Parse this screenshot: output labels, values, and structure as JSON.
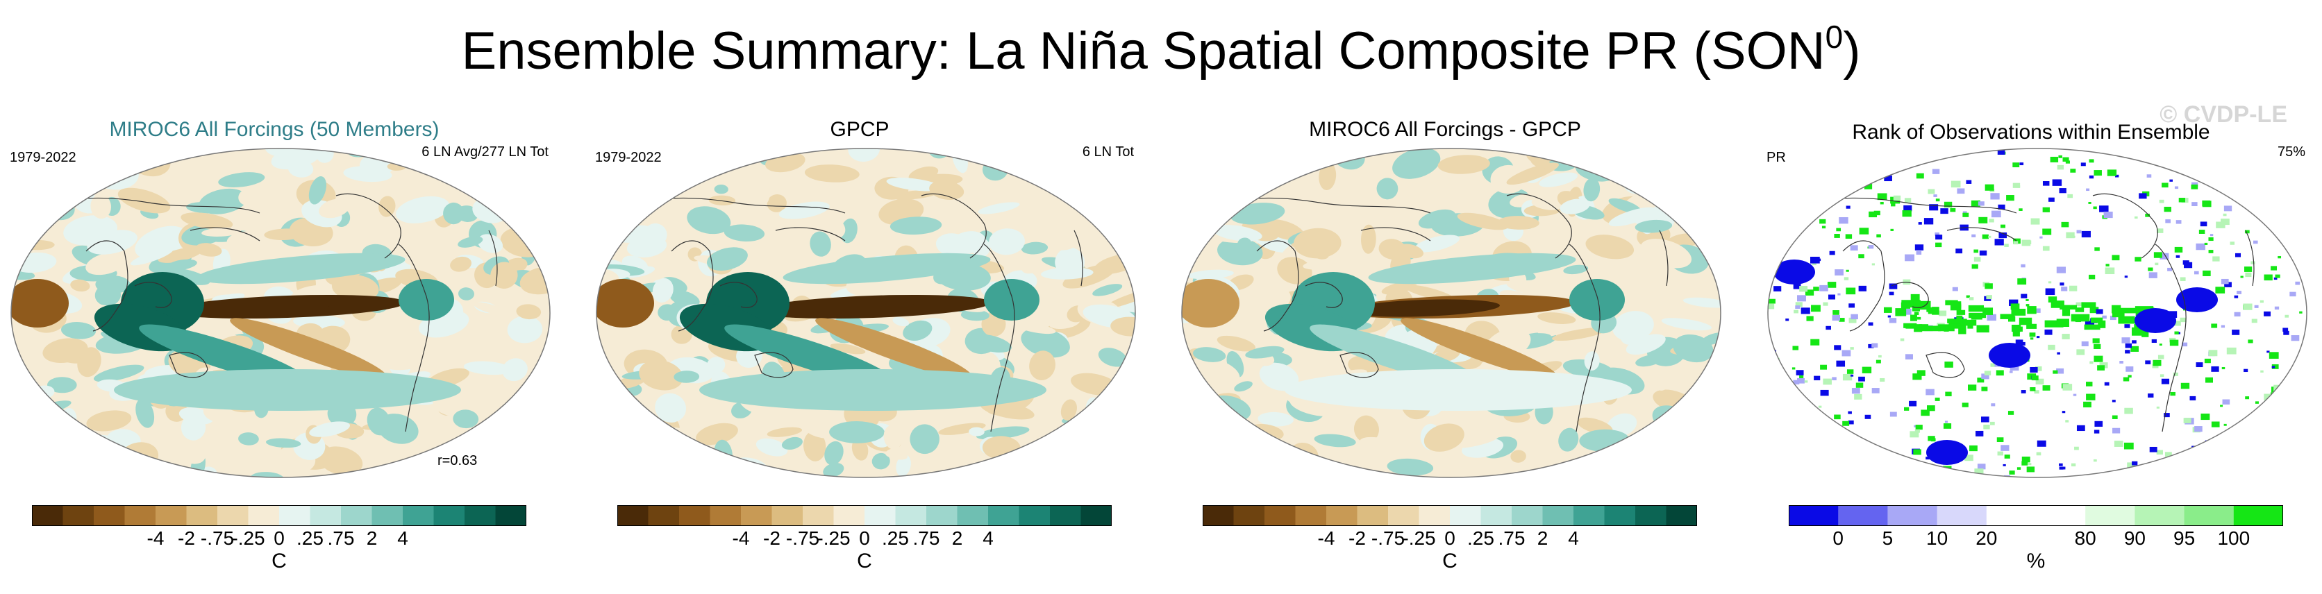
{
  "title": {
    "text": "Ensemble Summary: La Niña Spatial Composite PR (SON",
    "sup": "0",
    "close": ")"
  },
  "watermark": "© CVDP-LE",
  "panels": [
    {
      "id": "miroc6",
      "title": "MIROC6 All Forcings (50 Members)",
      "left_text": "1979-2022",
      "right_text": "6 LN Avg/277 LN Tot",
      "corner_text": "r=0.63",
      "map": "composite",
      "colorbar": {
        "colors": [
          "#4a2a08",
          "#6e4310",
          "#8f5a1c",
          "#b07b36",
          "#c89a55",
          "#dcbc80",
          "#ecd7ad",
          "#f6ecd6",
          "#e6f4f1",
          "#c5e8e1",
          "#9dd6cc",
          "#6fbfb2",
          "#3fa394",
          "#1c8474",
          "#0c6554",
          "#034638"
        ],
        "ticks": [
          "-4",
          "-2",
          "-.75",
          "-.25",
          "0",
          ".25",
          ".75",
          "2",
          "4"
        ],
        "unit": "C"
      }
    },
    {
      "id": "gpcp",
      "title": "GPCP",
      "left_text": "1979-2022",
      "right_text": "6 LN Tot",
      "corner_text": "",
      "map": "composite",
      "colorbar": {
        "colors": [
          "#4a2a08",
          "#6e4310",
          "#8f5a1c",
          "#b07b36",
          "#c89a55",
          "#dcbc80",
          "#ecd7ad",
          "#f6ecd6",
          "#e6f4f1",
          "#c5e8e1",
          "#9dd6cc",
          "#6fbfb2",
          "#3fa394",
          "#1c8474",
          "#0c6554",
          "#034638"
        ],
        "ticks": [
          "-4",
          "-2",
          "-.75",
          "-.25",
          "0",
          ".25",
          ".75",
          "2",
          "4"
        ],
        "unit": "C"
      }
    },
    {
      "id": "difference",
      "title": "MIROC6 All Forcings - GPCP",
      "left_text": "",
      "right_text": "",
      "corner_text": "",
      "map": "difference",
      "colorbar": {
        "colors": [
          "#4a2a08",
          "#6e4310",
          "#8f5a1c",
          "#b07b36",
          "#c89a55",
          "#dcbc80",
          "#ecd7ad",
          "#f6ecd6",
          "#e6f4f1",
          "#c5e8e1",
          "#9dd6cc",
          "#6fbfb2",
          "#3fa394",
          "#1c8474",
          "#0c6554",
          "#034638"
        ],
        "ticks": [
          "-4",
          "-2",
          "-.75",
          "-.25",
          "0",
          ".25",
          ".75",
          "2",
          "4"
        ],
        "unit": "C"
      }
    },
    {
      "id": "rank",
      "title": "Rank of Observations within Ensemble",
      "left_text": "PR",
      "right_text": "75%",
      "corner_text": "",
      "map": "rank",
      "colorbar": {
        "colors": [
          "#0a0ae6",
          "#6464f0",
          "#a8a8f6",
          "#d8d8fb",
          "#ffffff",
          "#ffffff",
          "#e0fbe0",
          "#b6f4b6",
          "#8aed8a",
          "#15e615"
        ],
        "ticks": [
          "0",
          "5",
          "10",
          "20",
          "80",
          "90",
          "95",
          "100"
        ],
        "unit": "%"
      }
    }
  ]
}
